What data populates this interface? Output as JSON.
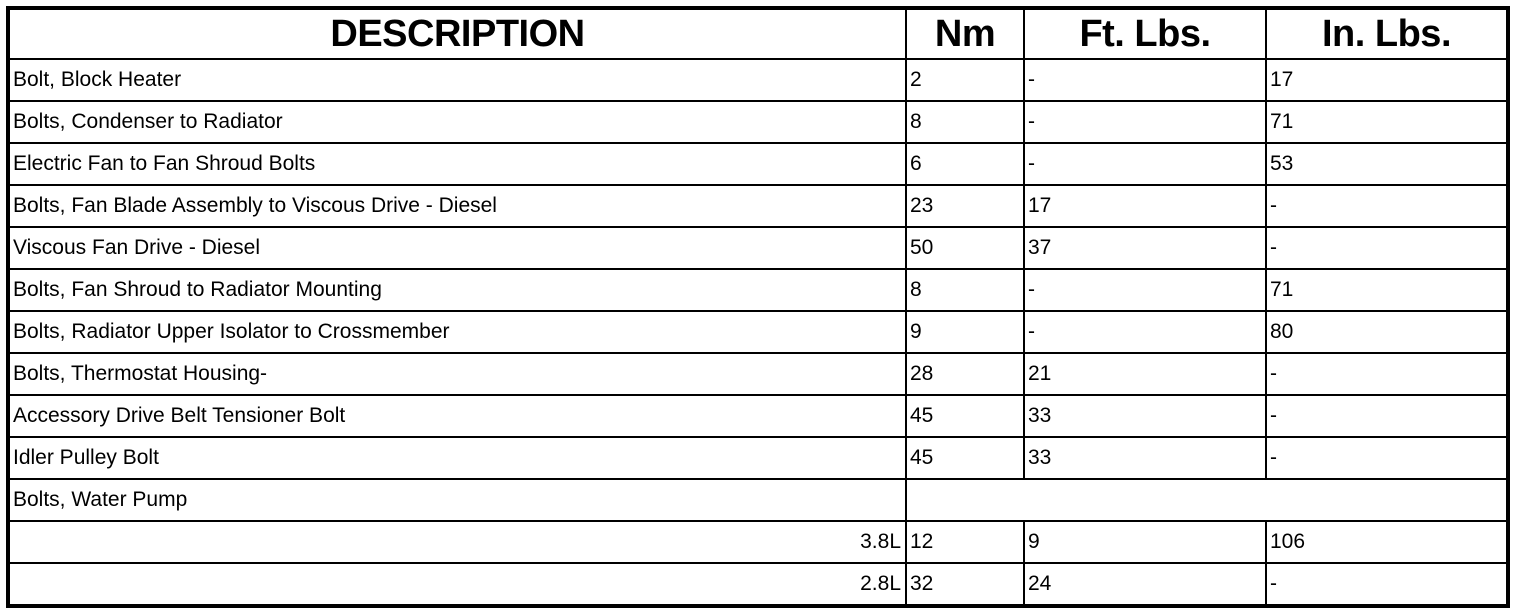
{
  "headers": {
    "description": "DESCRIPTION",
    "nm": "Nm",
    "ft_lbs": "Ft. Lbs.",
    "in_lbs": "In. Lbs."
  },
  "rows": [
    {
      "description": "Bolt, Block Heater",
      "nm": "2",
      "ft_lbs": "-",
      "in_lbs": "17"
    },
    {
      "description": "Bolts, Condenser to Radiator",
      "nm": "8",
      "ft_lbs": "-",
      "in_lbs": "71"
    },
    {
      "description": "Electric Fan to Fan Shroud Bolts",
      "nm": "6",
      "ft_lbs": "-",
      "in_lbs": "53"
    },
    {
      "description": "Bolts, Fan Blade Assembly to Viscous Drive - Diesel",
      "nm": "23",
      "ft_lbs": "17",
      "in_lbs": "-"
    },
    {
      "description": "Viscous Fan Drive - Diesel",
      "nm": "50",
      "ft_lbs": "37",
      "in_lbs": "-"
    },
    {
      "description": "Bolts, Fan Shroud to Radiator Mounting",
      "nm": "8",
      "ft_lbs": "-",
      "in_lbs": "71"
    },
    {
      "description": "Bolts, Radiator Upper Isolator to Crossmember",
      "nm": "9",
      "ft_lbs": "-",
      "in_lbs": "80"
    },
    {
      "description": "Bolts, Thermostat Housing-",
      "nm": "28",
      "ft_lbs": "21",
      "in_lbs": "-"
    },
    {
      "description": "Accessory Drive Belt Tensioner Bolt",
      "nm": "45",
      "ft_lbs": "33",
      "in_lbs": "-"
    },
    {
      "description": "Idler Pulley Bolt",
      "nm": "45",
      "ft_lbs": "33",
      "in_lbs": "-"
    }
  ],
  "water_pump": {
    "description": "Bolts, Water Pump",
    "variants": [
      {
        "engine": "3.8L",
        "nm": "12",
        "ft_lbs": "9",
        "in_lbs": "106"
      },
      {
        "engine": "2.8L",
        "nm": "32",
        "ft_lbs": "24",
        "in_lbs": "-"
      }
    ]
  }
}
